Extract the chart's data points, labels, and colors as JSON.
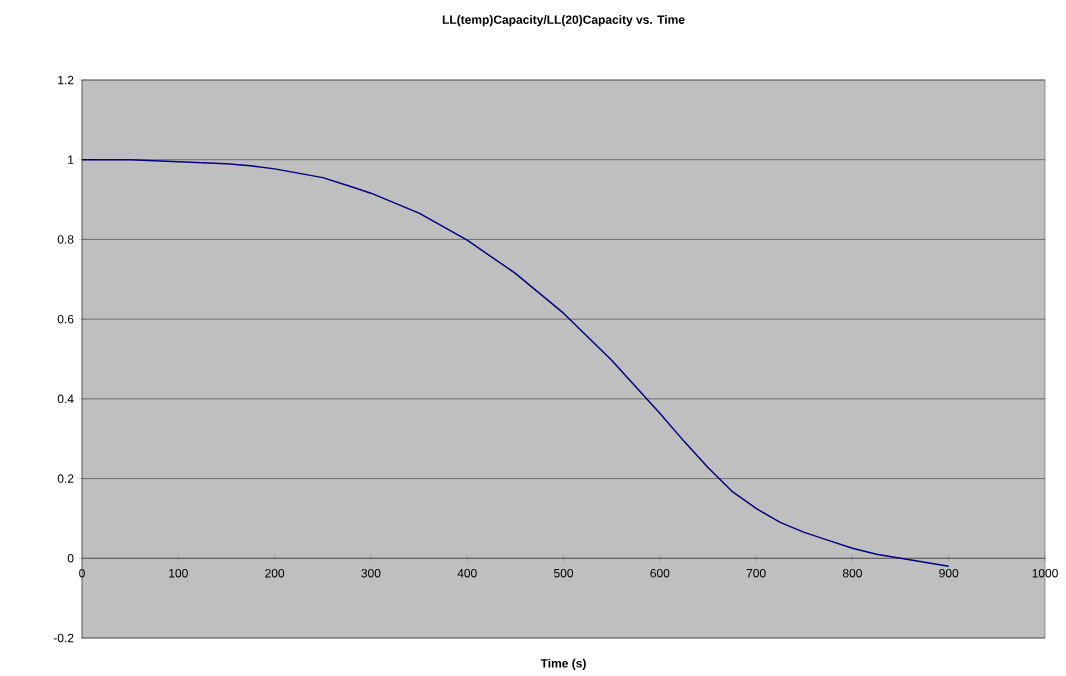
{
  "chart_data": {
    "type": "line",
    "title": "LL(temp)Capacity/LL(20)Capacity vs. Time",
    "xlabel": "Time (s)",
    "xlim": [
      0,
      1000
    ],
    "xticks": [
      0,
      100,
      200,
      300,
      400,
      500,
      600,
      700,
      800,
      900,
      1000
    ],
    "ylim": [
      -0.2,
      1.2
    ],
    "yticks": [
      -0.2,
      0,
      0.2,
      0.4,
      0.6,
      0.8,
      1,
      1.2
    ],
    "grid": "y",
    "series": [
      {
        "color": "#000080",
        "x": [
          0,
          50,
          100,
          150,
          175,
          200,
          250,
          275,
          300,
          350,
          400,
          450,
          500,
          550,
          600,
          625,
          650,
          675,
          700,
          725,
          750,
          775,
          800,
          825,
          850,
          875,
          900
        ],
        "values": [
          1.0,
          1.0,
          0.995,
          0.99,
          0.985,
          0.977,
          0.955,
          0.936,
          0.916,
          0.866,
          0.798,
          0.715,
          0.615,
          0.497,
          0.364,
          0.294,
          0.228,
          0.168,
          0.125,
          0.09,
          0.065,
          0.045,
          0.025,
          0.01,
          0.0,
          -0.01,
          -0.02
        ]
      }
    ]
  }
}
